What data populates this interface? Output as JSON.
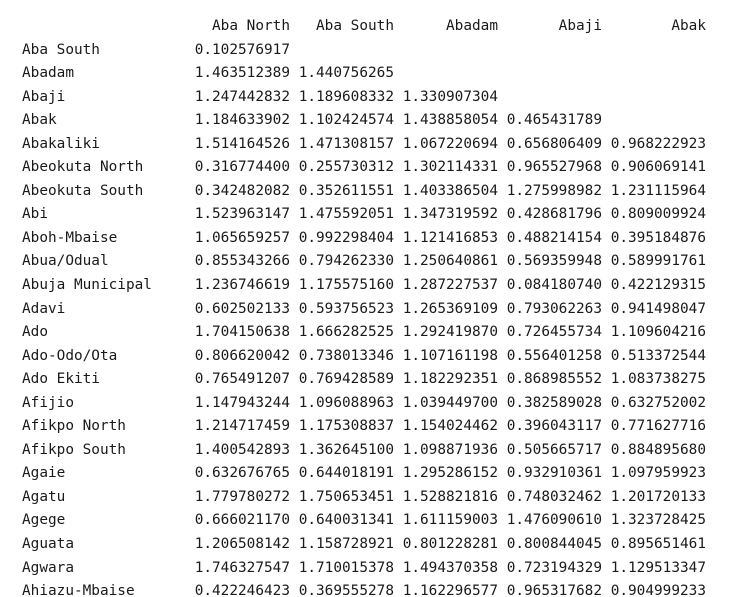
{
  "table": {
    "columns": [
      "Aba North",
      "Aba South",
      "Abadam",
      "Abaji",
      "Abak"
    ],
    "rows": [
      {
        "index": "Aba South",
        "values": [
          "0.102576917",
          "",
          "",
          "",
          ""
        ]
      },
      {
        "index": "Abadam",
        "values": [
          "1.463512389",
          "1.440756265",
          "",
          "",
          ""
        ]
      },
      {
        "index": "Abaji",
        "values": [
          "1.247442832",
          "1.189608332",
          "1.330907304",
          "",
          ""
        ]
      },
      {
        "index": "Abak",
        "values": [
          "1.184633902",
          "1.102424574",
          "1.438858054",
          "0.465431789",
          ""
        ]
      },
      {
        "index": "Abakaliki",
        "values": [
          "1.514164526",
          "1.471308157",
          "1.067220694",
          "0.656806409",
          "0.968222923"
        ]
      },
      {
        "index": "Abeokuta North",
        "values": [
          "0.316774400",
          "0.255730312",
          "1.302114331",
          "0.965527968",
          "0.906069141"
        ]
      },
      {
        "index": "Abeokuta South",
        "values": [
          "0.342482082",
          "0.352611551",
          "1.403386504",
          "1.275998982",
          "1.231115964"
        ]
      },
      {
        "index": "Abi",
        "values": [
          "1.523963147",
          "1.475592051",
          "1.347319592",
          "0.428681796",
          "0.809009924"
        ]
      },
      {
        "index": "Aboh-Mbaise",
        "values": [
          "1.065659257",
          "0.992298404",
          "1.121416853",
          "0.488214154",
          "0.395184876"
        ]
      },
      {
        "index": "Abua/Odual",
        "values": [
          "0.855343266",
          "0.794262330",
          "1.250640861",
          "0.569359948",
          "0.589991761"
        ]
      },
      {
        "index": "Abuja Municipal",
        "values": [
          "1.236746619",
          "1.175575160",
          "1.287227537",
          "0.084180740",
          "0.422129315"
        ]
      },
      {
        "index": "Adavi",
        "values": [
          "0.602502133",
          "0.593756523",
          "1.265369109",
          "0.793062263",
          "0.941498047"
        ]
      },
      {
        "index": "Ado",
        "values": [
          "1.704150638",
          "1.666282525",
          "1.292419870",
          "0.726455734",
          "1.109604216"
        ]
      },
      {
        "index": "Ado-Odo/Ota",
        "values": [
          "0.806620042",
          "0.738013346",
          "1.107161198",
          "0.556401258",
          "0.513372544"
        ]
      },
      {
        "index": "Ado Ekiti",
        "values": [
          "0.765491207",
          "0.769428589",
          "1.182292351",
          "0.868985552",
          "1.083738275"
        ]
      },
      {
        "index": "Afijio",
        "values": [
          "1.147943244",
          "1.096088963",
          "1.039449700",
          "0.382589028",
          "0.632752002"
        ]
      },
      {
        "index": "Afikpo North",
        "values": [
          "1.214717459",
          "1.175308837",
          "1.154024462",
          "0.396043117",
          "0.771627716"
        ]
      },
      {
        "index": "Afikpo South",
        "values": [
          "1.400542893",
          "1.362645100",
          "1.098871936",
          "0.505665717",
          "0.884895680"
        ]
      },
      {
        "index": "Agaie",
        "values": [
          "0.632676765",
          "0.644018191",
          "1.295286152",
          "0.932910361",
          "1.097959923"
        ]
      },
      {
        "index": "Agatu",
        "values": [
          "1.779780272",
          "1.750653451",
          "1.528821816",
          "0.748032462",
          "1.201720133"
        ]
      },
      {
        "index": "Agege",
        "values": [
          "0.666021170",
          "0.640031341",
          "1.611159003",
          "1.476090610",
          "1.323728425"
        ]
      },
      {
        "index": "Aguata",
        "values": [
          "1.206508142",
          "1.158728921",
          "0.801228281",
          "0.800844045",
          "0.895651461"
        ]
      },
      {
        "index": "Agwara",
        "values": [
          "1.746327547",
          "1.710015378",
          "1.494370358",
          "0.723194329",
          "1.129513347"
        ]
      },
      {
        "index": "Ahiazu-Mbaise",
        "values": [
          "0.422246423",
          "0.369555278",
          "1.162296577",
          "0.965317682",
          "0.904999233"
        ]
      }
    ]
  }
}
